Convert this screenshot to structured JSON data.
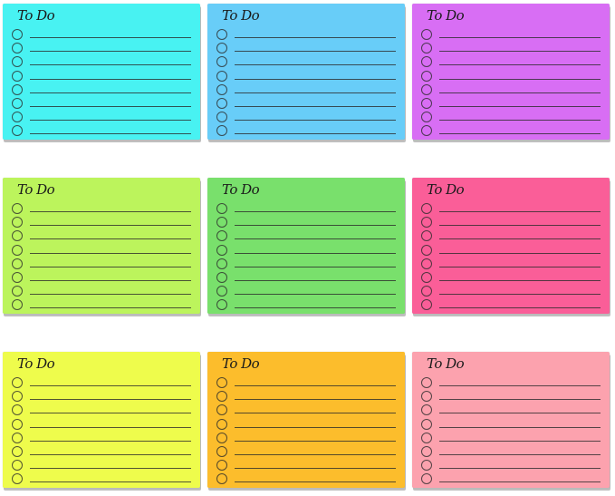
{
  "notes": [
    {
      "title": "To Do",
      "color": "#48f2f2",
      "rows": 8
    },
    {
      "title": "To Do",
      "color": "#68cdf8",
      "rows": 8
    },
    {
      "title": "To Do",
      "color": "#d86ef4",
      "rows": 8
    },
    {
      "title": "To Do",
      "color": "#bcf45c",
      "rows": 8
    },
    {
      "title": "To Do",
      "color": "#79e06c",
      "rows": 8
    },
    {
      "title": "To Do",
      "color": "#fa5e98",
      "rows": 8
    },
    {
      "title": "To Do",
      "color": "#eefc4c",
      "rows": 8
    },
    {
      "title": "To Do",
      "color": "#fcbd2c",
      "rows": 8
    },
    {
      "title": "To Do",
      "color": "#fca2ae",
      "rows": 8
    }
  ]
}
